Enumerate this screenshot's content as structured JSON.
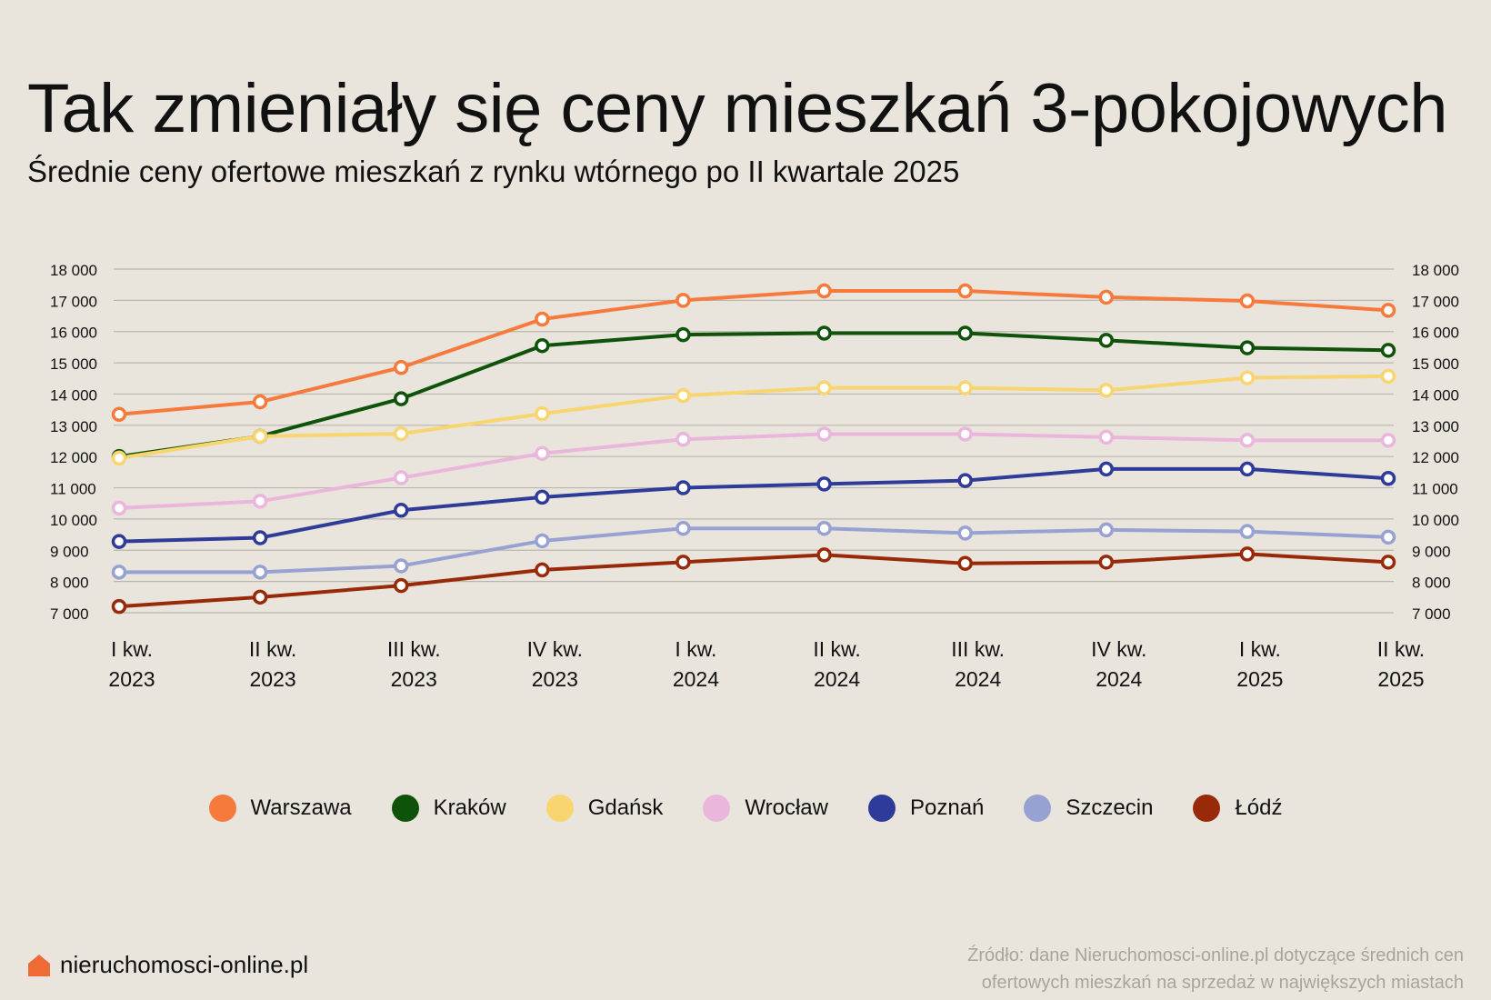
{
  "title": "Tak zmieniały się ceny mieszkań 3-pokojowych",
  "subtitle": "Średnie ceny ofertowe mieszkań z rynku wtórnego po II kwartale 2025",
  "brand": {
    "name": "nieruchomosci-online.pl",
    "icon": "house-icon",
    "icon_color": "#f06a35"
  },
  "source": "Źródło: dane Nieruchomosci-online.pl dotyczące średnich cen ofertowych mieszkań na sprzedaż w największych miastach",
  "chart_data": {
    "type": "line",
    "categories": [
      [
        "I kw.",
        "2023"
      ],
      [
        "II kw.",
        "2023"
      ],
      [
        "III kw.",
        "2023"
      ],
      [
        "IV kw.",
        "2023"
      ],
      [
        "I kw.",
        "2024"
      ],
      [
        "II kw.",
        "2024"
      ],
      [
        "III kw.",
        "2024"
      ],
      [
        "IV kw.",
        "2024"
      ],
      [
        "I kw.",
        "2025"
      ],
      [
        "II kw.",
        "2025"
      ]
    ],
    "ylim": [
      7000,
      18000
    ],
    "yticks": [
      7000,
      8000,
      9000,
      10000,
      11000,
      12000,
      13000,
      14000,
      15000,
      16000,
      17000,
      18000
    ],
    "ytick_labels": [
      "7 000",
      "8 000",
      "9 000",
      "10 000",
      "11 000",
      "12 000",
      "13 000",
      "14 000",
      "15 000",
      "16 000",
      "17 000",
      "18 000"
    ],
    "grid": true,
    "legend_position": "bottom",
    "series": [
      {
        "name": "Warszawa",
        "color": "#f57a3c",
        "values": [
          13350,
          13750,
          14850,
          16400,
          17000,
          17300,
          17300,
          17100,
          16980,
          16680
        ]
      },
      {
        "name": "Kraków",
        "color": "#0f5209",
        "values": [
          12000,
          12650,
          13850,
          15550,
          15900,
          15950,
          15950,
          15720,
          15480,
          15400
        ]
      },
      {
        "name": "Gdańsk",
        "color": "#f8d56f",
        "values": [
          11950,
          12650,
          12730,
          13370,
          13950,
          14200,
          14200,
          14120,
          14520,
          14570
        ]
      },
      {
        "name": "Wrocław",
        "color": "#eab6dc",
        "values": [
          10350,
          10570,
          11320,
          12100,
          12550,
          12720,
          12720,
          12620,
          12520,
          12520
        ]
      },
      {
        "name": "Poznań",
        "color": "#2e3b99",
        "values": [
          9280,
          9400,
          10280,
          10700,
          11000,
          11120,
          11230,
          11600,
          11600,
          11300
        ]
      },
      {
        "name": "Szczecin",
        "color": "#98a2d2",
        "values": [
          8300,
          8300,
          8500,
          9300,
          9700,
          9700,
          9550,
          9650,
          9600,
          9420
        ]
      },
      {
        "name": "Łódź",
        "color": "#992a09",
        "values": [
          7200,
          7500,
          7870,
          8370,
          8620,
          8850,
          8580,
          8620,
          8880,
          8620
        ]
      }
    ]
  }
}
